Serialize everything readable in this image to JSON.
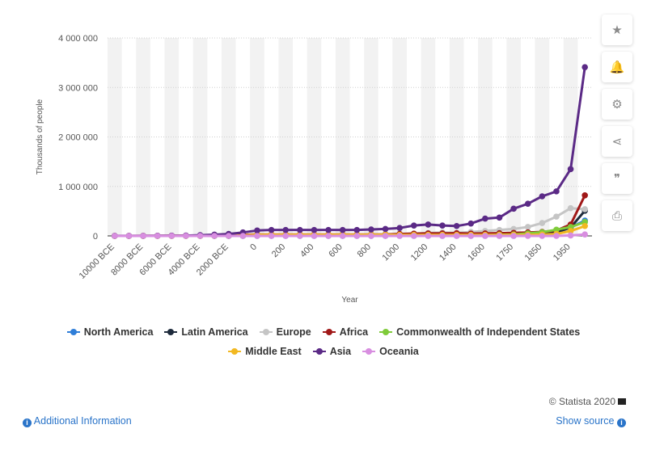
{
  "sidebar": {
    "buttons": [
      {
        "name": "star-icon",
        "glyph": "★"
      },
      {
        "name": "bell-icon",
        "glyph": "🔔"
      },
      {
        "name": "gear-icon",
        "glyph": "⚙"
      },
      {
        "name": "share-icon",
        "glyph": "⋖"
      },
      {
        "name": "quote-icon",
        "glyph": "❞"
      },
      {
        "name": "print-icon",
        "glyph": "⎙"
      }
    ]
  },
  "footer": {
    "credit": "© Statista 2020",
    "additional_info": "Additional Information",
    "show_source": "Show source"
  },
  "chart_data": {
    "type": "line",
    "xlabel": "Year",
    "ylabel": "Thousands of people",
    "ylim": [
      0,
      4000000
    ],
    "yticks": [
      0,
      1000000,
      2000000,
      3000000,
      4000000
    ],
    "ytick_labels": [
      "0",
      "1 000 000",
      "2 000 000",
      "3 000 000",
      "4 000 000"
    ],
    "grid": true,
    "legend_position": "bottom",
    "categories": [
      "10000 BCE",
      "9000 BCE",
      "8000 BCE",
      "7000 BCE",
      "6000 BCE",
      "5000 BCE",
      "4000 BCE",
      "3000 BCE",
      "2000 BCE",
      "1000 BCE",
      "0",
      "100",
      "200",
      "300",
      "400",
      "500",
      "600",
      "700",
      "800",
      "900",
      "1000",
      "1100",
      "1200",
      "1300",
      "1400",
      "1500",
      "1600",
      "1700",
      "1750",
      "1800",
      "1850",
      "1900",
      "1950",
      "2000"
    ],
    "xtick_labels_shown": [
      "10000 BCE",
      "8000 BCE",
      "6000 BCE",
      "4000 BCE",
      "2000 BCE",
      "0",
      "200",
      "400",
      "600",
      "800",
      "1000",
      "1200",
      "1400",
      "1600",
      "1750",
      "1850",
      "1950"
    ],
    "series": [
      {
        "name": "North America",
        "color": "#2f7ed8",
        "values": [
          0,
          0,
          0,
          0,
          0,
          0,
          0,
          1000,
          1000,
          1000,
          1500,
          1500,
          1500,
          1500,
          1500,
          1500,
          1500,
          1500,
          1500,
          1500,
          2000,
          2000,
          2000,
          2000,
          2000,
          2000,
          2000,
          2000,
          2000,
          5000,
          26000,
          97000,
          172000,
          310000
        ]
      },
      {
        "name": "Latin America",
        "color": "#1e2b3c",
        "values": [
          0,
          0,
          0,
          0,
          0,
          0,
          0,
          0,
          1000,
          3000,
          5000,
          5500,
          6000,
          6500,
          7000,
          8000,
          9000,
          10000,
          11000,
          12000,
          13000,
          14000,
          15000,
          16000,
          17000,
          18000,
          9000,
          12000,
          15000,
          25000,
          35000,
          70000,
          170000,
          510000
        ]
      },
      {
        "name": "Europe",
        "color": "#c5c5c5",
        "values": [
          1000,
          1000,
          2000,
          2000,
          3000,
          5000,
          7000,
          10000,
          15000,
          20000,
          30000,
          30000,
          30000,
          30000,
          28000,
          28000,
          28000,
          28000,
          30000,
          35000,
          40000,
          48000,
          58000,
          70000,
          60000,
          80000,
          100000,
          120000,
          140000,
          180000,
          260000,
          390000,
          560000,
          540000
        ]
      },
      {
        "name": "Africa",
        "color": "#a01818",
        "values": [
          0,
          0,
          1000,
          2000,
          3000,
          4000,
          7000,
          10000,
          13000,
          20000,
          30000,
          30000,
          30000,
          30000,
          30000,
          30000,
          30000,
          30000,
          30000,
          30000,
          40000,
          45000,
          50000,
          50000,
          55000,
          47000,
          50000,
          55000,
          60000,
          70000,
          80000,
          110000,
          230000,
          820000
        ]
      },
      {
        "name": "Commonwealth of Independent States",
        "color": "#7fcb3a",
        "values": [
          0,
          0,
          0,
          0,
          0,
          0,
          0,
          0,
          1000,
          3000,
          5000,
          5000,
          5000,
          5000,
          5000,
          5000,
          5000,
          5000,
          5000,
          5000,
          7000,
          7000,
          8000,
          9000,
          10000,
          13000,
          15000,
          25000,
          30000,
          50000,
          75000,
          125000,
          180000,
          280000
        ]
      },
      {
        "name": "Middle East",
        "color": "#f2b821",
        "values": [
          0,
          0,
          0,
          0,
          0,
          0,
          1000,
          3000,
          5000,
          10000,
          25000,
          25000,
          25000,
          25000,
          25000,
          25000,
          25000,
          25000,
          25000,
          25000,
          22000,
          22000,
          22000,
          22000,
          22000,
          22000,
          22000,
          22000,
          22000,
          22000,
          28000,
          40000,
          100000,
          200000
        ]
      },
      {
        "name": "Asia",
        "color": "#5b2a86",
        "values": [
          1000,
          1000,
          2000,
          3000,
          5000,
          7000,
          15000,
          25000,
          40000,
          70000,
          110000,
          120000,
          120000,
          120000,
          120000,
          120000,
          120000,
          120000,
          130000,
          140000,
          160000,
          210000,
          230000,
          210000,
          200000,
          250000,
          350000,
          370000,
          550000,
          650000,
          800000,
          900000,
          1350000,
          3410000
        ]
      },
      {
        "name": "Oceania",
        "color": "#d88ee0",
        "values": [
          0,
          0,
          0,
          0,
          0,
          0,
          0,
          0,
          0,
          0,
          0,
          0,
          0,
          0,
          0,
          0,
          0,
          0,
          0,
          0,
          0,
          0,
          0,
          0,
          0,
          0,
          0,
          0,
          0,
          0,
          0,
          0,
          10000,
          30000
        ]
      }
    ]
  }
}
